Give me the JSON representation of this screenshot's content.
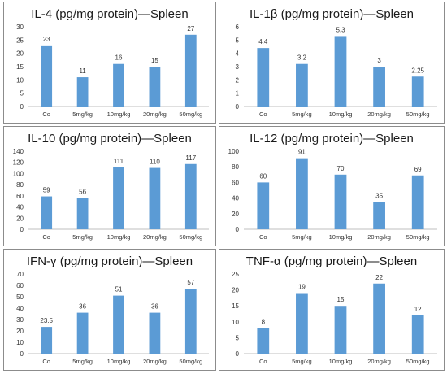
{
  "charts": [
    {
      "type": "bar",
      "title": "IL-4 (pg/mg protein)—Spleen",
      "categories": [
        "Co",
        "5mg/kg",
        "10mg/kg",
        "20mg/kg",
        "50mg/kg"
      ],
      "values": [
        23,
        11,
        16,
        15,
        27
      ],
      "value_labels": [
        "23",
        "11",
        "16",
        "15",
        "27"
      ],
      "ylim": [
        0,
        30
      ],
      "yticks": [
        0,
        5,
        10,
        15,
        20,
        25,
        30
      ],
      "grid": false,
      "bar_color": "#5b9bd5"
    },
    {
      "type": "bar",
      "title": "IL-1β (pg/mg protein)—Spleen",
      "categories": [
        "Co",
        "5mg/kg",
        "10mg/kg",
        "20mg/kg",
        "50mg/kg"
      ],
      "values": [
        4.4,
        3.2,
        5.3,
        3,
        2.25
      ],
      "value_labels": [
        "4.4",
        "3.2",
        "5.3",
        "3",
        "2.25"
      ],
      "ylim": [
        0,
        6
      ],
      "yticks": [
        0,
        1,
        2,
        3,
        4,
        5,
        6
      ],
      "grid": false,
      "bar_color": "#5b9bd5"
    },
    {
      "type": "bar",
      "title": "IL-10 (pg/mg protein)—Spleen",
      "categories": [
        "Co",
        "5mg/kg",
        "10mg/kg",
        "20mg/kg",
        "50mg/kg"
      ],
      "values": [
        59,
        56,
        111,
        110,
        117
      ],
      "value_labels": [
        "59",
        "56",
        "111",
        "110",
        "117"
      ],
      "ylim": [
        0,
        140
      ],
      "yticks": [
        0,
        20,
        40,
        60,
        80,
        100,
        120,
        140
      ],
      "grid": false,
      "bar_color": "#5b9bd5"
    },
    {
      "type": "bar",
      "title": "IL-12 (pg/mg protein)—Spleen",
      "categories": [
        "Co",
        "5mg/kg",
        "10mg/kg",
        "20mg/kg",
        "50mg/kg"
      ],
      "values": [
        60,
        91,
        70,
        35,
        69
      ],
      "value_labels": [
        "60",
        "91",
        "70",
        "35",
        "69"
      ],
      "ylim": [
        0,
        100
      ],
      "yticks": [
        0,
        20,
        40,
        60,
        80,
        100
      ],
      "grid": false,
      "bar_color": "#5b9bd5"
    },
    {
      "type": "bar",
      "title": "IFN-γ (pg/mg protein)—Spleen",
      "categories": [
        "Co",
        "5mg/kg",
        "10mg/kg",
        "20mg/kg",
        "50mg/kg"
      ],
      "values": [
        23.5,
        36,
        51,
        36,
        57
      ],
      "value_labels": [
        "23.5",
        "36",
        "51",
        "36",
        "57"
      ],
      "ylim": [
        0,
        70
      ],
      "yticks": [
        0,
        10,
        20,
        30,
        40,
        50,
        60,
        70
      ],
      "grid": false,
      "bar_color": "#5b9bd5"
    },
    {
      "type": "bar",
      "title": "TNF-α (pg/mg protein)—Spleen",
      "categories": [
        "Co",
        "5mg/kg",
        "10mg/kg",
        "20mg/kg",
        "50mg/kg"
      ],
      "values": [
        8,
        19,
        15,
        22,
        12
      ],
      "value_labels": [
        "8",
        "19",
        "15",
        "22",
        "12"
      ],
      "ylim": [
        0,
        25
      ],
      "yticks": [
        0,
        5,
        10,
        15,
        20,
        25
      ],
      "grid": false,
      "bar_color": "#5b9bd5"
    }
  ]
}
